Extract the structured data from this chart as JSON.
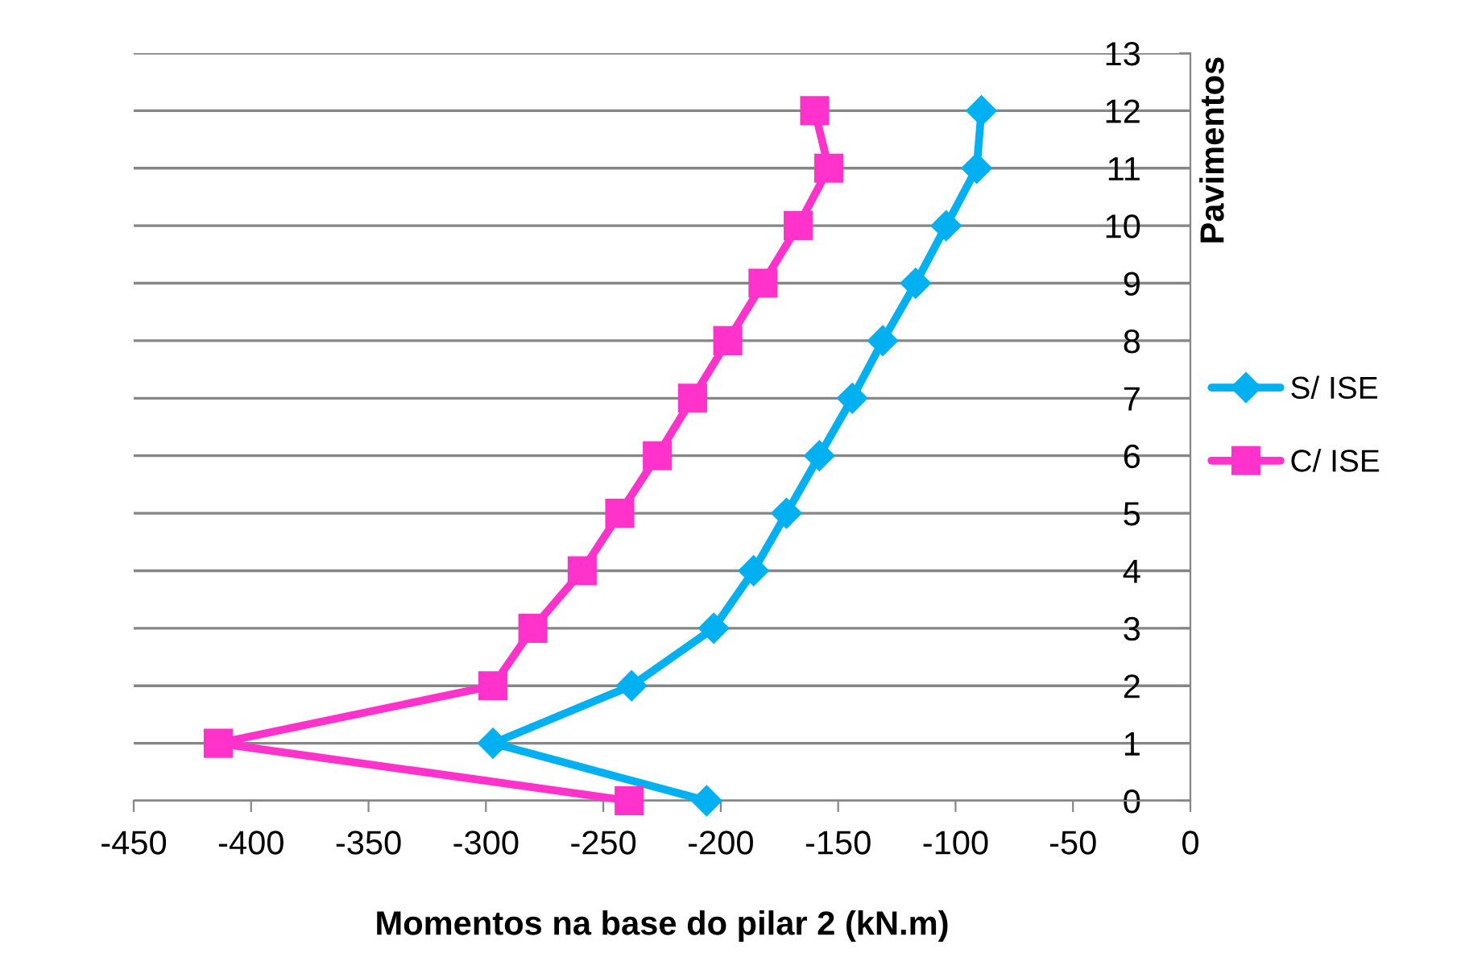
{
  "chart_data": {
    "type": "line",
    "xlabel": "Momentos na base do pilar 2 (kN.m)",
    "ylabel": "Pavimentos",
    "xlim": [
      -450,
      0
    ],
    "xticks": [
      -450,
      -400,
      -350,
      -300,
      -250,
      -200,
      -150,
      -100,
      -50,
      0
    ],
    "ylim": [
      0,
      13
    ],
    "yticks": [
      0,
      1,
      2,
      3,
      4,
      5,
      6,
      7,
      8,
      9,
      10,
      11,
      12,
      13
    ],
    "grid": "y",
    "legend": "right",
    "series": [
      {
        "name": "S/ ISE",
        "color": "#00b0f0",
        "marker": "diamond",
        "x": [
          -206,
          -297,
          -238,
          -203,
          -186,
          -172,
          -158,
          -144,
          -131,
          -117,
          -104,
          -91,
          -89
        ],
        "values": [
          0,
          1,
          2,
          3,
          4,
          5,
          6,
          7,
          8,
          9,
          10,
          11,
          12
        ]
      },
      {
        "name": "C/ ISE",
        "color": "#ff33cc",
        "marker": "square",
        "x": [
          -239,
          -414,
          -297,
          -280,
          -259,
          -243,
          -227,
          -212,
          -197,
          -182,
          -167,
          -154,
          -160
        ],
        "values": [
          0,
          1,
          2,
          3,
          4,
          5,
          6,
          7,
          8,
          9,
          10,
          11,
          12
        ]
      }
    ]
  }
}
